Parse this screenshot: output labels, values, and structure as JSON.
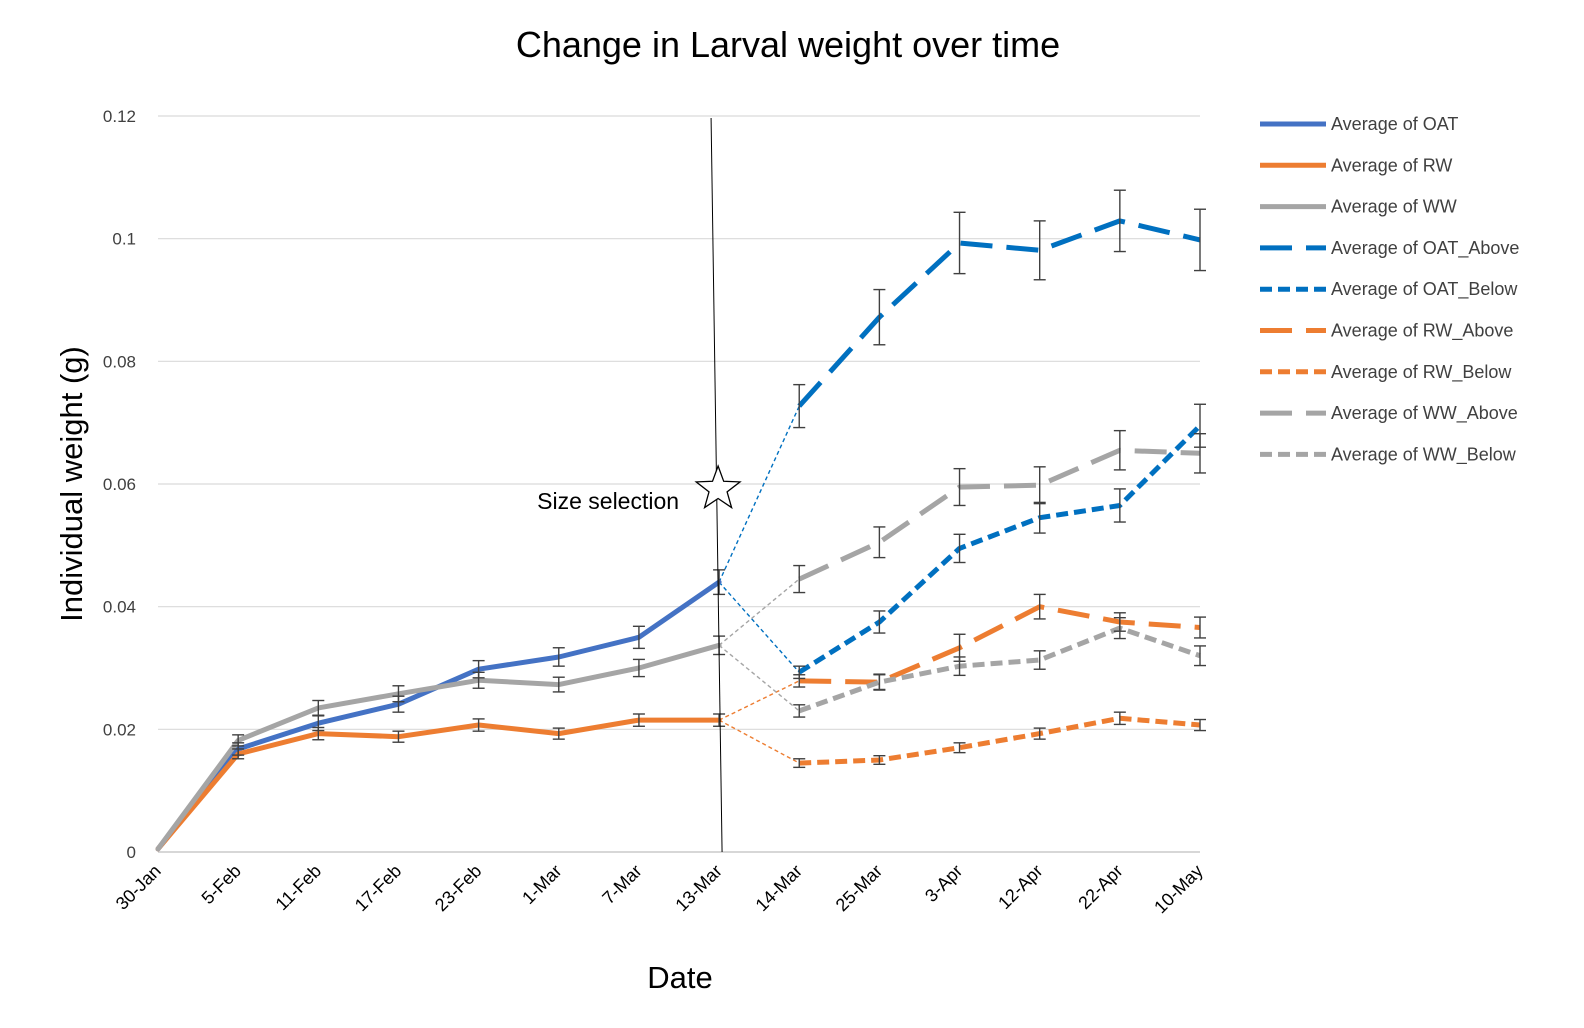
{
  "chart_data": {
    "type": "line",
    "title": "Change in Larval weight over time",
    "xlabel": "Date",
    "ylabel": "Individual weight (g)",
    "categories": [
      "30-Jan",
      "5-Feb",
      "11-Feb",
      "17-Feb",
      "23-Feb",
      "1-Mar",
      "7-Mar",
      "13-Mar",
      "14-Mar",
      "25-Mar",
      "3-Apr",
      "12-Apr",
      "22-Apr",
      "10-May"
    ],
    "ylim": [
      0,
      0.12
    ],
    "yticks": [
      "0",
      "0.02",
      "0.04",
      "0.06",
      "0.08",
      "0.1",
      "0.12"
    ],
    "ytick_values": [
      0,
      0.02,
      0.04,
      0.06,
      0.08,
      0.1,
      0.12
    ],
    "grid": true,
    "legend_position": "right",
    "annotation": "Size selection",
    "annotation_marker": "star",
    "annotation_category": "13-Mar",
    "series": [
      {
        "name": "Average of OAT",
        "color": "#4472C4",
        "dash": "solid",
        "width": 5,
        "values": [
          0.0005,
          0.0168,
          0.021,
          0.0241,
          0.0298,
          0.0318,
          0.035,
          0.044,
          null,
          null,
          null,
          null,
          null,
          null
        ],
        "errors": [
          0,
          0.001,
          0.0012,
          0.0013,
          0.0014,
          0.0015,
          0.0018,
          0.002,
          null,
          null,
          null,
          null,
          null,
          null
        ]
      },
      {
        "name": "Average of RW",
        "color": "#ED7D31",
        "dash": "solid",
        "width": 5,
        "values": [
          0.0005,
          0.016,
          0.0193,
          0.0188,
          0.0207,
          0.0193,
          0.0215,
          0.0215,
          null,
          null,
          null,
          null,
          null,
          null
        ],
        "errors": [
          0,
          0.0008,
          0.001,
          0.0009,
          0.001,
          0.0009,
          0.001,
          0.001,
          null,
          null,
          null,
          null,
          null,
          null
        ]
      },
      {
        "name": "Average of WW",
        "color": "#A5A5A5",
        "dash": "solid",
        "width": 5,
        "values": [
          0.0005,
          0.0182,
          0.0235,
          0.0258,
          0.028,
          0.0273,
          0.03,
          0.0337,
          null,
          null,
          null,
          null,
          null,
          null
        ],
        "errors": [
          0,
          0.0009,
          0.0012,
          0.0013,
          0.0013,
          0.0012,
          0.0014,
          0.0015,
          null,
          null,
          null,
          null,
          null,
          null
        ]
      },
      {
        "name": "Average of OAT_Above",
        "color": "#0070C0",
        "dash": "long",
        "width": 5,
        "values": [
          null,
          null,
          null,
          null,
          null,
          null,
          null,
          null,
          0.0727,
          0.0872,
          0.0993,
          0.0981,
          0.1029,
          0.0998
        ],
        "errors": [
          null,
          null,
          null,
          null,
          null,
          null,
          null,
          null,
          0.0035,
          0.0045,
          0.005,
          0.0048,
          0.005,
          0.005
        ]
      },
      {
        "name": "Average of OAT_Below",
        "color": "#0070C0",
        "dash": "short",
        "width": 5,
        "values": [
          null,
          null,
          null,
          null,
          null,
          null,
          null,
          null,
          0.0293,
          0.0375,
          0.0495,
          0.0545,
          0.0565,
          0.0695
        ],
        "errors": [
          null,
          null,
          null,
          null,
          null,
          null,
          null,
          null,
          0.001,
          0.0018,
          0.0023,
          0.0025,
          0.0027,
          0.0035
        ]
      },
      {
        "name": "Average of RW_Above",
        "color": "#ED7D31",
        "dash": "long",
        "width": 5,
        "values": [
          null,
          null,
          null,
          null,
          null,
          null,
          null,
          null,
          0.0279,
          0.0277,
          0.0333,
          0.04,
          0.0375,
          0.0366
        ],
        "errors": [
          null,
          null,
          null,
          null,
          null,
          null,
          null,
          null,
          0.001,
          0.0012,
          0.0022,
          0.002,
          0.0015,
          0.0017
        ]
      },
      {
        "name": "Average of RW_Below",
        "color": "#ED7D31",
        "dash": "short",
        "width": 5,
        "values": [
          null,
          null,
          null,
          null,
          null,
          null,
          null,
          null,
          0.0145,
          0.015,
          0.017,
          0.0193,
          0.0218,
          0.0207
        ],
        "errors": [
          null,
          null,
          null,
          null,
          null,
          null,
          null,
          null,
          0.0007,
          0.0007,
          0.0008,
          0.0009,
          0.001,
          0.0009
        ]
      },
      {
        "name": "Average of WW_Above",
        "color": "#A5A5A5",
        "dash": "long",
        "width": 5,
        "values": [
          null,
          null,
          null,
          null,
          null,
          null,
          null,
          null,
          0.0445,
          0.0505,
          0.0595,
          0.0598,
          0.0655,
          0.065
        ],
        "errors": [
          null,
          null,
          null,
          null,
          null,
          null,
          null,
          null,
          0.0022,
          0.0025,
          0.003,
          0.003,
          0.0032,
          0.0032
        ]
      },
      {
        "name": "Average of WW_Below",
        "color": "#A5A5A5",
        "dash": "short",
        "width": 5,
        "values": [
          null,
          null,
          null,
          null,
          null,
          null,
          null,
          null,
          0.023,
          0.0277,
          0.0303,
          0.0313,
          0.0365,
          0.032
        ],
        "errors": [
          null,
          null,
          null,
          null,
          null,
          null,
          null,
          null,
          0.001,
          0.0013,
          0.0015,
          0.0015,
          0.0017,
          0.0016
        ]
      }
    ],
    "connectors": [
      {
        "from_series": "Average of OAT",
        "to_series": "Average of OAT_Above",
        "color": "#0070C0"
      },
      {
        "from_series": "Average of OAT",
        "to_series": "Average of OAT_Below",
        "color": "#0070C0"
      },
      {
        "from_series": "Average of RW",
        "to_series": "Average of RW_Above",
        "color": "#ED7D31"
      },
      {
        "from_series": "Average of RW",
        "to_series": "Average of RW_Below",
        "color": "#ED7D31"
      },
      {
        "from_series": "Average of WW",
        "to_series": "Average of WW_Above",
        "color": "#A5A5A5"
      },
      {
        "from_series": "Average of WW",
        "to_series": "Average of WW_Below",
        "color": "#A5A5A5"
      }
    ]
  }
}
